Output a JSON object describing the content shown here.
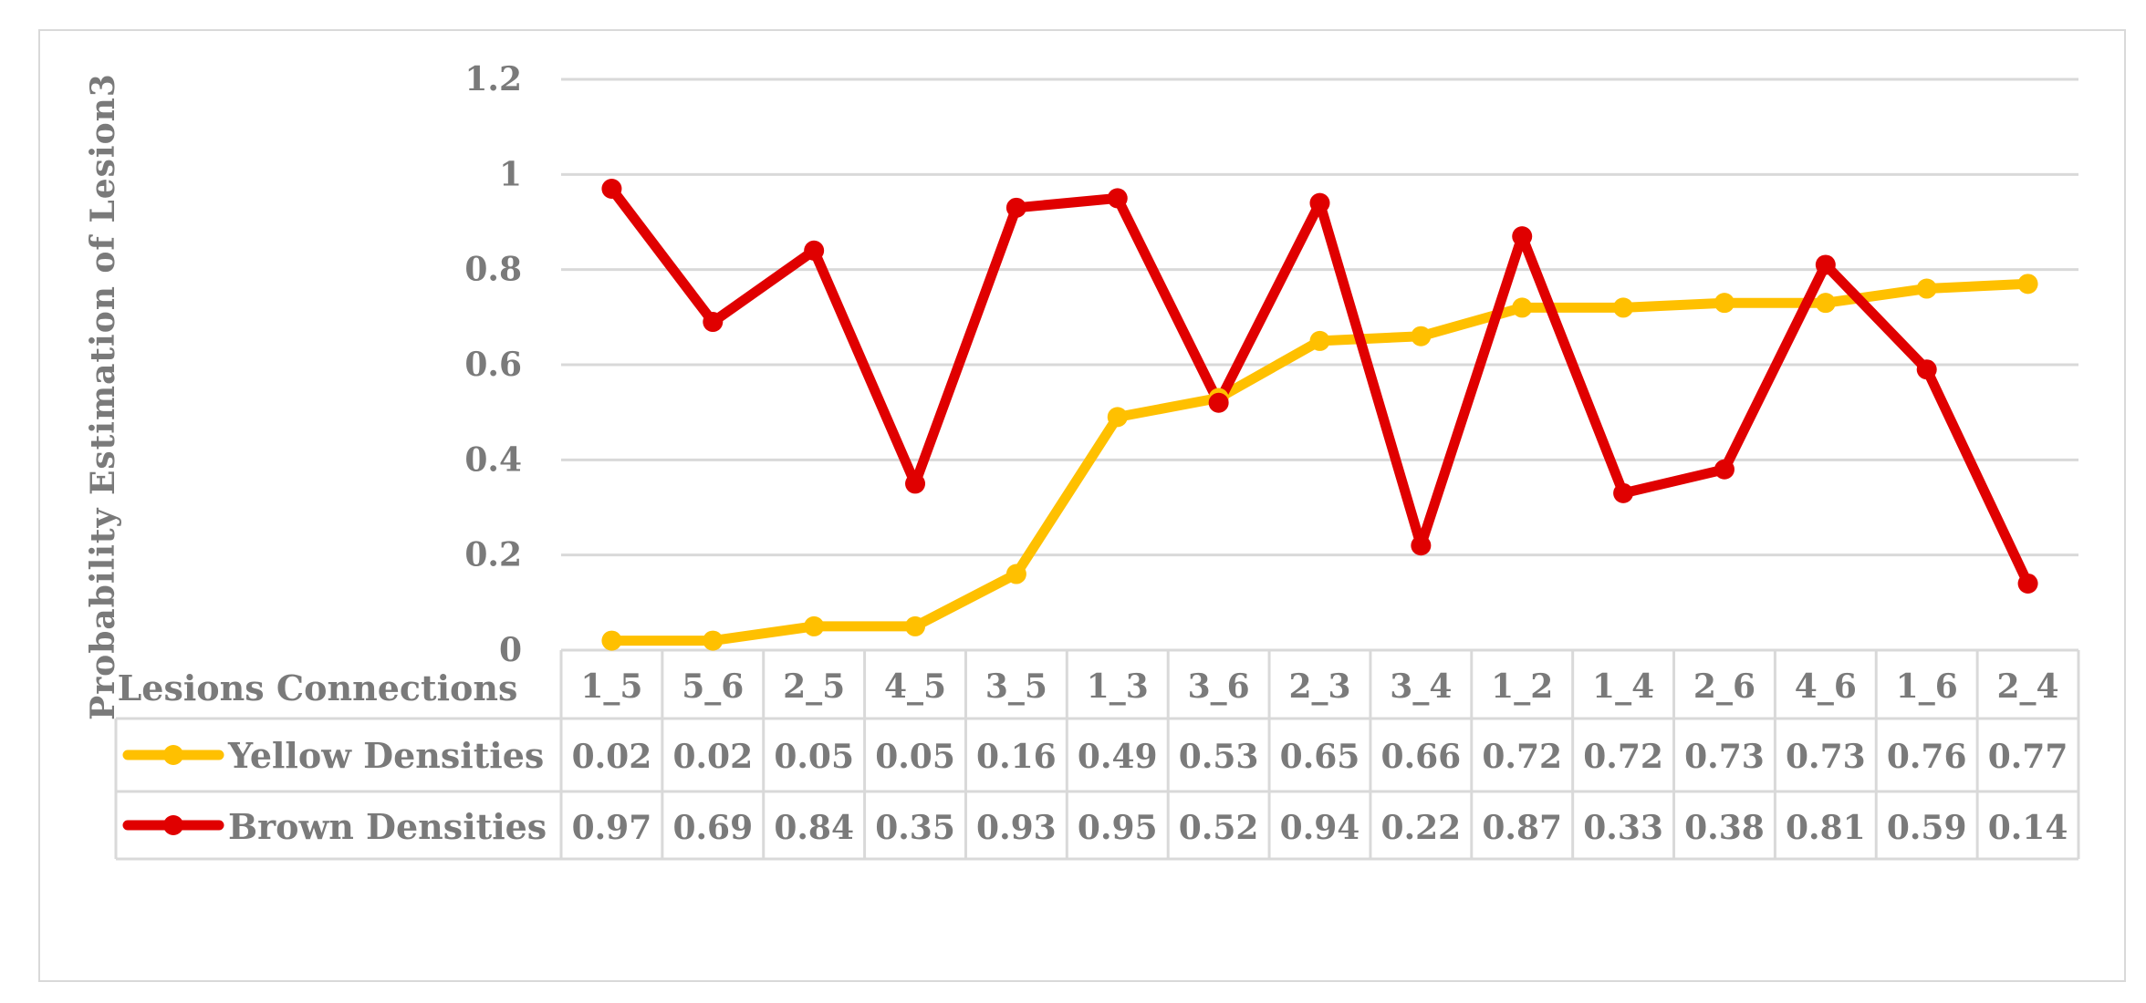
{
  "chart_data": {
    "type": "line",
    "ylabel": "Probability Estimation of Lesion3",
    "table_header": "Lesions Connections",
    "categories": [
      "1_5",
      "5_6",
      "2_5",
      "4_5",
      "3_5",
      "1_3",
      "3_6",
      "2_3",
      "3_4",
      "1_2",
      "1_4",
      "2_6",
      "4_6",
      "1_6",
      "2_4"
    ],
    "yticks": [
      "0",
      "0.2",
      "0.4",
      "0.6",
      "0.8",
      "1",
      "1.2"
    ],
    "ylim": [
      0,
      1.2
    ],
    "grid": true,
    "legend": "data-table",
    "series": [
      {
        "name": "Yellow Densities",
        "color": "#ffc000",
        "values": [
          0.02,
          0.02,
          0.05,
          0.05,
          0.16,
          0.49,
          0.53,
          0.65,
          0.66,
          0.72,
          0.72,
          0.73,
          0.73,
          0.76,
          0.77
        ],
        "labels": [
          "0.02",
          "0.02",
          "0.05",
          "0.05",
          "0.16",
          "0.49",
          "0.53",
          "0.65",
          "0.66",
          "0.72",
          "0.72",
          "0.73",
          "0.73",
          "0.76",
          "0.77"
        ]
      },
      {
        "name": "Brown Densities",
        "color": "#e00000",
        "values": [
          0.97,
          0.69,
          0.84,
          0.35,
          0.93,
          0.95,
          0.52,
          0.94,
          0.22,
          0.87,
          0.33,
          0.38,
          0.81,
          0.59,
          0.14
        ],
        "labels": [
          "0.97",
          "0.69",
          "0.84",
          "0.35",
          "0.93",
          "0.95",
          "0.52",
          "0.94",
          "0.22",
          "0.87",
          "0.33",
          "0.38",
          "0.81",
          "0.59",
          "0.14"
        ]
      }
    ]
  }
}
